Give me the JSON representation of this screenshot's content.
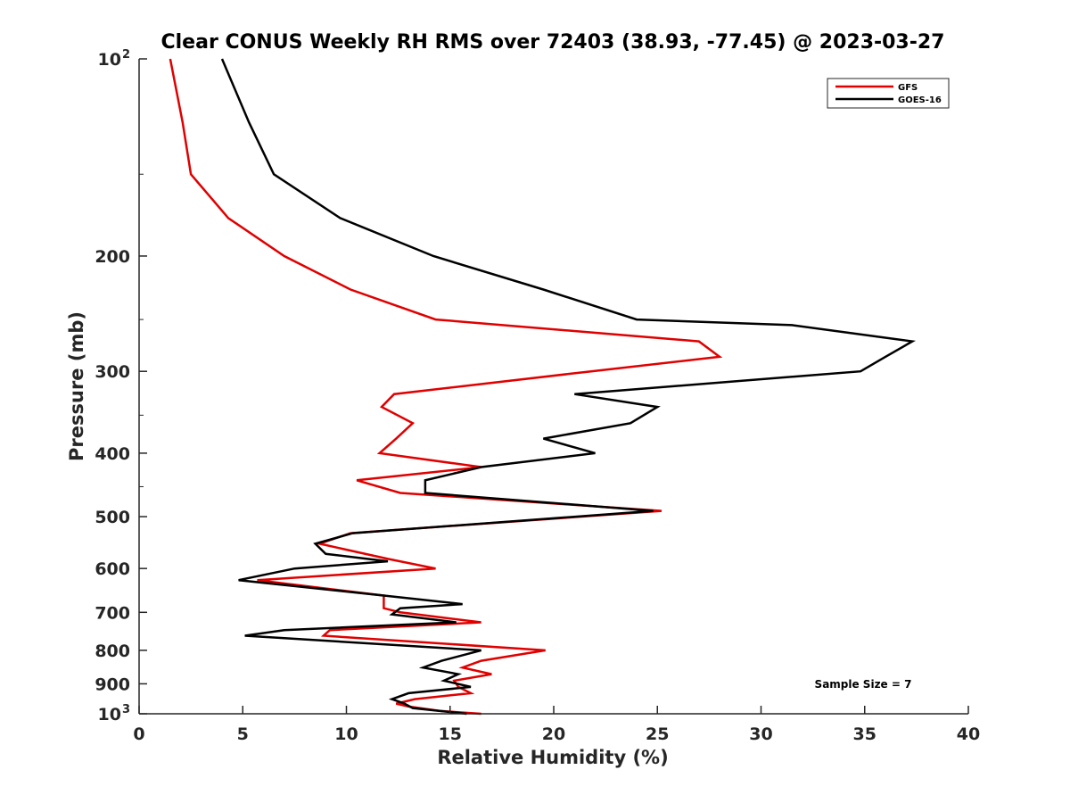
{
  "chart_data": {
    "type": "line",
    "title": "Clear CONUS Weekly RH RMS over 72403 (38.93, -77.45) @ 2023-03-27",
    "xlabel": "Relative Humidity (%)",
    "ylabel": "Pressure (mb)",
    "xlim": [
      0,
      40
    ],
    "ylim": [
      100,
      1000
    ],
    "yscale": "log",
    "y_reversed": true,
    "xticks": [
      0,
      5,
      10,
      15,
      20,
      25,
      30,
      35,
      40
    ],
    "yticks": [
      {
        "value": 100,
        "label": "10",
        "sup": "2"
      },
      {
        "value": 200,
        "label": "200",
        "sup": ""
      },
      {
        "value": 300,
        "label": "300",
        "sup": ""
      },
      {
        "value": 400,
        "label": "400",
        "sup": ""
      },
      {
        "value": 500,
        "label": "500",
        "sup": ""
      },
      {
        "value": 600,
        "label": "600",
        "sup": ""
      },
      {
        "value": 700,
        "label": "700",
        "sup": ""
      },
      {
        "value": 800,
        "label": "800",
        "sup": ""
      },
      {
        "value": 900,
        "label": "900",
        "sup": ""
      },
      {
        "value": 1000,
        "label": "10",
        "sup": "3"
      }
    ],
    "grid": false,
    "legend_position": "top-right",
    "annotation": "Sample Size = 7",
    "series": [
      {
        "name": "GFS",
        "color": "#e00000",
        "points": [
          [
            1.5,
            100
          ],
          [
            2.1,
            125
          ],
          [
            2.5,
            150
          ],
          [
            4.3,
            175
          ],
          [
            7.0,
            200
          ],
          [
            10.2,
            225
          ],
          [
            14.3,
            250
          ],
          [
            27.0,
            270
          ],
          [
            28.0,
            285
          ],
          [
            21.8,
            300
          ],
          [
            12.3,
            325
          ],
          [
            11.7,
            340
          ],
          [
            13.2,
            360
          ],
          [
            12.4,
            380
          ],
          [
            11.6,
            400
          ],
          [
            16.5,
            420
          ],
          [
            10.5,
            440
          ],
          [
            12.6,
            460
          ],
          [
            25.2,
            490
          ],
          [
            10.2,
            530
          ],
          [
            8.7,
            550
          ],
          [
            12.0,
            580
          ],
          [
            14.3,
            600
          ],
          [
            5.7,
            625
          ],
          [
            11.8,
            660
          ],
          [
            11.8,
            690
          ],
          [
            12.6,
            700
          ],
          [
            16.5,
            725
          ],
          [
            9.2,
            745
          ],
          [
            8.9,
            760
          ],
          [
            19.6,
            800
          ],
          [
            16.5,
            830
          ],
          [
            15.6,
            850
          ],
          [
            17.0,
            870
          ],
          [
            15.2,
            890
          ],
          [
            15.4,
            910
          ],
          [
            16.0,
            930
          ],
          [
            13.3,
            950
          ],
          [
            12.4,
            965
          ],
          [
            13.0,
            975
          ],
          [
            14.5,
            990
          ],
          [
            16.5,
            1000
          ]
        ]
      },
      {
        "name": "GOES-16",
        "color": "#000000",
        "points": [
          [
            4.0,
            100
          ],
          [
            5.3,
            125
          ],
          [
            6.5,
            150
          ],
          [
            9.7,
            175
          ],
          [
            14.2,
            200
          ],
          [
            19.5,
            225
          ],
          [
            24.0,
            250
          ],
          [
            31.5,
            255
          ],
          [
            37.3,
            270
          ],
          [
            36.0,
            285
          ],
          [
            34.8,
            300
          ],
          [
            21.0,
            325
          ],
          [
            25.0,
            340
          ],
          [
            23.7,
            360
          ],
          [
            19.5,
            380
          ],
          [
            22.0,
            400
          ],
          [
            16.5,
            420
          ],
          [
            13.8,
            440
          ],
          [
            13.8,
            460
          ],
          [
            24.8,
            490
          ],
          [
            10.3,
            530
          ],
          [
            8.5,
            550
          ],
          [
            9.0,
            570
          ],
          [
            12.0,
            585
          ],
          [
            7.5,
            600
          ],
          [
            4.8,
            625
          ],
          [
            11.8,
            660
          ],
          [
            15.6,
            680
          ],
          [
            12.6,
            690
          ],
          [
            12.2,
            705
          ],
          [
            15.3,
            725
          ],
          [
            7.0,
            745
          ],
          [
            5.1,
            760
          ],
          [
            16.5,
            800
          ],
          [
            14.6,
            830
          ],
          [
            13.7,
            850
          ],
          [
            15.4,
            870
          ],
          [
            14.7,
            890
          ],
          [
            16.0,
            910
          ],
          [
            13.0,
            930
          ],
          [
            12.2,
            950
          ],
          [
            12.8,
            965
          ],
          [
            13.2,
            980
          ],
          [
            15.8,
            1000
          ]
        ]
      }
    ]
  }
}
